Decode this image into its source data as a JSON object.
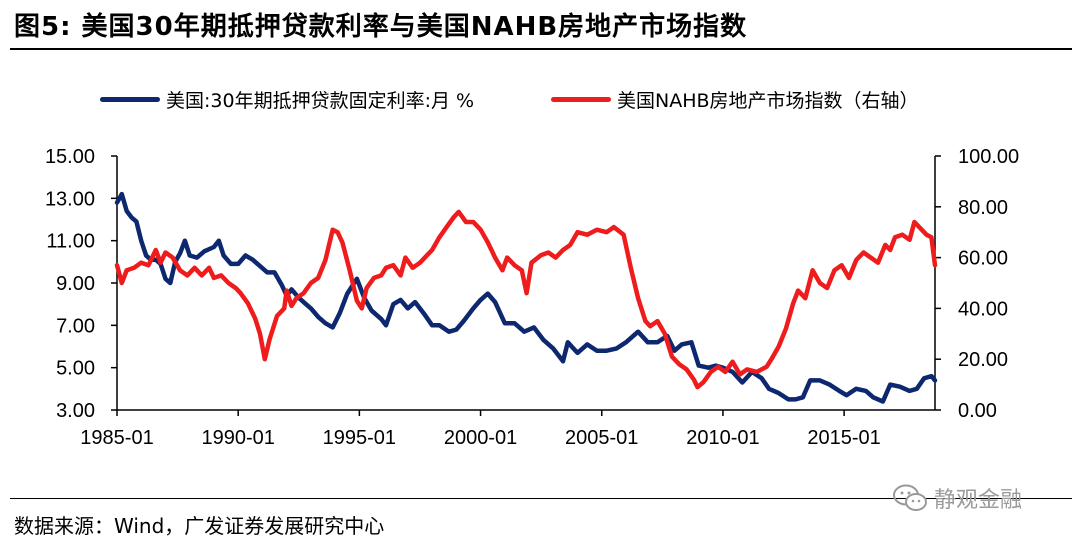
{
  "title": "图5:  美国30年期抵押贷款利率与美国NAHB房地产市场指数",
  "source": "数据来源：Wind，广发证券发展研究中心",
  "watermark": "静观金融",
  "chart_data": {
    "type": "line",
    "title": "",
    "xlabel": "",
    "ylabel": "",
    "x_tick_labels": [
      "1985-01",
      "1990-01",
      "1995-01",
      "2000-01",
      "2005-01",
      "2010-01",
      "2015-01"
    ],
    "x_range": [
      1985.0,
      2018.75
    ],
    "y_left_ticks": [
      "3.00",
      "5.00",
      "7.00",
      "9.00",
      "11.00",
      "13.00",
      "15.00"
    ],
    "y_left_range": [
      3,
      15
    ],
    "y_right_ticks": [
      "0.00",
      "20.00",
      "40.00",
      "60.00",
      "80.00",
      "100.00"
    ],
    "y_right_range": [
      0,
      100
    ],
    "grid": false,
    "legend_position": "top",
    "series": [
      {
        "name": "美国:30年期抵押贷款固定利率:月 %",
        "axis": "left",
        "color": "#0e2870",
        "points": [
          [
            1985.0,
            12.8
          ],
          [
            1985.2,
            13.2
          ],
          [
            1985.4,
            12.4
          ],
          [
            1985.6,
            12.1
          ],
          [
            1985.8,
            11.9
          ],
          [
            1986.0,
            11.0
          ],
          [
            1986.2,
            10.3
          ],
          [
            1986.4,
            10.1
          ],
          [
            1986.6,
            10.1
          ],
          [
            1986.8,
            9.9
          ],
          [
            1987.0,
            9.2
          ],
          [
            1987.2,
            9.0
          ],
          [
            1987.4,
            10.0
          ],
          [
            1987.6,
            10.4
          ],
          [
            1987.8,
            11.0
          ],
          [
            1988.0,
            10.3
          ],
          [
            1988.3,
            10.2
          ],
          [
            1988.6,
            10.5
          ],
          [
            1989.0,
            10.7
          ],
          [
            1989.2,
            11.0
          ],
          [
            1989.4,
            10.3
          ],
          [
            1989.7,
            9.9
          ],
          [
            1990.0,
            9.9
          ],
          [
            1990.3,
            10.3
          ],
          [
            1990.6,
            10.1
          ],
          [
            1990.9,
            9.8
          ],
          [
            1991.2,
            9.5
          ],
          [
            1991.5,
            9.5
          ],
          [
            1991.8,
            8.9
          ],
          [
            1992.0,
            8.4
          ],
          [
            1992.2,
            8.7
          ],
          [
            1992.5,
            8.3
          ],
          [
            1992.8,
            8.0
          ],
          [
            1993.0,
            7.8
          ],
          [
            1993.3,
            7.4
          ],
          [
            1993.6,
            7.1
          ],
          [
            1993.9,
            6.9
          ],
          [
            1994.2,
            7.6
          ],
          [
            1994.5,
            8.5
          ],
          [
            1994.9,
            9.2
          ],
          [
            1995.2,
            8.3
          ],
          [
            1995.5,
            7.7
          ],
          [
            1995.9,
            7.3
          ],
          [
            1996.1,
            7.0
          ],
          [
            1996.4,
            8.0
          ],
          [
            1996.7,
            8.2
          ],
          [
            1997.0,
            7.8
          ],
          [
            1997.3,
            8.1
          ],
          [
            1997.7,
            7.5
          ],
          [
            1998.0,
            7.0
          ],
          [
            1998.3,
            7.0
          ],
          [
            1998.7,
            6.7
          ],
          [
            1999.0,
            6.8
          ],
          [
            1999.3,
            7.2
          ],
          [
            1999.7,
            7.8
          ],
          [
            2000.0,
            8.2
          ],
          [
            2000.3,
            8.5
          ],
          [
            2000.6,
            8.1
          ],
          [
            2001.0,
            7.1
          ],
          [
            2001.4,
            7.1
          ],
          [
            2001.8,
            6.7
          ],
          [
            2002.2,
            6.9
          ],
          [
            2002.6,
            6.3
          ],
          [
            2003.0,
            5.9
          ],
          [
            2003.4,
            5.3
          ],
          [
            2003.6,
            6.2
          ],
          [
            2004.0,
            5.7
          ],
          [
            2004.4,
            6.1
          ],
          [
            2004.8,
            5.8
          ],
          [
            2005.2,
            5.8
          ],
          [
            2005.6,
            5.9
          ],
          [
            2006.0,
            6.2
          ],
          [
            2006.5,
            6.7
          ],
          [
            2006.9,
            6.2
          ],
          [
            2007.3,
            6.2
          ],
          [
            2007.7,
            6.5
          ],
          [
            2008.0,
            5.8
          ],
          [
            2008.3,
            6.1
          ],
          [
            2008.7,
            6.2
          ],
          [
            2009.0,
            5.1
          ],
          [
            2009.4,
            5.0
          ],
          [
            2009.7,
            5.1
          ],
          [
            2010.0,
            5.0
          ],
          [
            2010.4,
            4.8
          ],
          [
            2010.8,
            4.3
          ],
          [
            2011.2,
            4.8
          ],
          [
            2011.6,
            4.5
          ],
          [
            2011.9,
            4.0
          ],
          [
            2012.3,
            3.8
          ],
          [
            2012.7,
            3.5
          ],
          [
            2013.0,
            3.5
          ],
          [
            2013.3,
            3.6
          ],
          [
            2013.6,
            4.4
          ],
          [
            2014.0,
            4.4
          ],
          [
            2014.4,
            4.2
          ],
          [
            2014.8,
            3.9
          ],
          [
            2015.1,
            3.7
          ],
          [
            2015.5,
            4.0
          ],
          [
            2015.9,
            3.9
          ],
          [
            2016.2,
            3.6
          ],
          [
            2016.6,
            3.4
          ],
          [
            2016.9,
            4.2
          ],
          [
            2017.3,
            4.1
          ],
          [
            2017.7,
            3.9
          ],
          [
            2018.0,
            4.0
          ],
          [
            2018.3,
            4.5
          ],
          [
            2018.6,
            4.6
          ],
          [
            2018.75,
            4.4
          ]
        ]
      },
      {
        "name": "美国NAHB房地产市场指数（右轴）",
        "axis": "right",
        "color": "#ee1c1c",
        "points": [
          [
            1985.0,
            57
          ],
          [
            1985.2,
            50
          ],
          [
            1985.4,
            55
          ],
          [
            1985.7,
            56
          ],
          [
            1986.0,
            58
          ],
          [
            1986.3,
            57
          ],
          [
            1986.6,
            63
          ],
          [
            1986.8,
            58
          ],
          [
            1987.0,
            62
          ],
          [
            1987.3,
            60
          ],
          [
            1987.6,
            55
          ],
          [
            1987.9,
            53
          ],
          [
            1988.2,
            56
          ],
          [
            1988.5,
            53
          ],
          [
            1988.8,
            56
          ],
          [
            1989.0,
            52
          ],
          [
            1989.3,
            53
          ],
          [
            1989.6,
            50
          ],
          [
            1989.9,
            48
          ],
          [
            1990.1,
            46
          ],
          [
            1990.4,
            42
          ],
          [
            1990.7,
            36
          ],
          [
            1990.9,
            30
          ],
          [
            1991.1,
            20
          ],
          [
            1991.3,
            28
          ],
          [
            1991.6,
            37
          ],
          [
            1991.9,
            40
          ],
          [
            1992.0,
            47
          ],
          [
            1992.2,
            41
          ],
          [
            1992.4,
            44
          ],
          [
            1992.7,
            46
          ],
          [
            1993.0,
            50
          ],
          [
            1993.3,
            52
          ],
          [
            1993.6,
            59
          ],
          [
            1993.9,
            71
          ],
          [
            1994.1,
            70
          ],
          [
            1994.3,
            66
          ],
          [
            1994.6,
            55
          ],
          [
            1994.9,
            43
          ],
          [
            1995.1,
            40
          ],
          [
            1995.3,
            48
          ],
          [
            1995.6,
            52
          ],
          [
            1995.9,
            53
          ],
          [
            1996.1,
            56
          ],
          [
            1996.4,
            57
          ],
          [
            1996.7,
            53
          ],
          [
            1996.9,
            60
          ],
          [
            1997.2,
            56
          ],
          [
            1997.5,
            58
          ],
          [
            1997.8,
            61
          ],
          [
            1998.0,
            63
          ],
          [
            1998.3,
            68
          ],
          [
            1998.6,
            72
          ],
          [
            1998.9,
            76
          ],
          [
            1999.1,
            78
          ],
          [
            1999.4,
            74
          ],
          [
            1999.7,
            74
          ],
          [
            2000.0,
            71
          ],
          [
            2000.3,
            66
          ],
          [
            2000.6,
            60
          ],
          [
            2000.9,
            55
          ],
          [
            2001.1,
            60
          ],
          [
            2001.4,
            57
          ],
          [
            2001.7,
            55
          ],
          [
            2001.9,
            46
          ],
          [
            2002.1,
            58
          ],
          [
            2002.5,
            61
          ],
          [
            2002.8,
            62
          ],
          [
            2003.1,
            60
          ],
          [
            2003.4,
            63
          ],
          [
            2003.7,
            65
          ],
          [
            2004.0,
            70
          ],
          [
            2004.4,
            69
          ],
          [
            2004.8,
            71
          ],
          [
            2005.2,
            70
          ],
          [
            2005.5,
            72
          ],
          [
            2005.9,
            69
          ],
          [
            2006.2,
            56
          ],
          [
            2006.5,
            44
          ],
          [
            2006.8,
            35
          ],
          [
            2007.0,
            33
          ],
          [
            2007.3,
            35
          ],
          [
            2007.6,
            30
          ],
          [
            2007.9,
            21
          ],
          [
            2008.2,
            18
          ],
          [
            2008.5,
            16
          ],
          [
            2008.8,
            12
          ],
          [
            2008.95,
            9
          ],
          [
            2009.2,
            11
          ],
          [
            2009.5,
            15
          ],
          [
            2009.8,
            17
          ],
          [
            2010.1,
            15
          ],
          [
            2010.4,
            19
          ],
          [
            2010.7,
            14
          ],
          [
            2011.0,
            16
          ],
          [
            2011.4,
            15
          ],
          [
            2011.8,
            17
          ],
          [
            2012.0,
            20
          ],
          [
            2012.3,
            25
          ],
          [
            2012.6,
            32
          ],
          [
            2012.9,
            42
          ],
          [
            2013.1,
            47
          ],
          [
            2013.4,
            44
          ],
          [
            2013.7,
            55
          ],
          [
            2014.0,
            50
          ],
          [
            2014.3,
            48
          ],
          [
            2014.6,
            55
          ],
          [
            2014.9,
            57
          ],
          [
            2015.2,
            52
          ],
          [
            2015.5,
            59
          ],
          [
            2015.8,
            62
          ],
          [
            2016.1,
            60
          ],
          [
            2016.4,
            58
          ],
          [
            2016.7,
            65
          ],
          [
            2016.9,
            63
          ],
          [
            2017.1,
            68
          ],
          [
            2017.4,
            69
          ],
          [
            2017.7,
            67
          ],
          [
            2017.9,
            74
          ],
          [
            2018.1,
            72
          ],
          [
            2018.4,
            69
          ],
          [
            2018.6,
            68
          ],
          [
            2018.75,
            57
          ]
        ]
      }
    ]
  }
}
